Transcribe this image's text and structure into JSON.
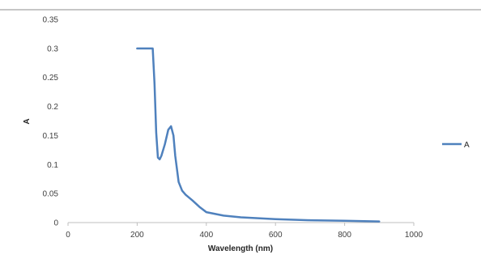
{
  "chart_data": {
    "type": "line",
    "title": "",
    "xlabel": "Wavelength (nm)",
    "ylabel": "A",
    "xlim": [
      0,
      1000
    ],
    "ylim": [
      0,
      0.35
    ],
    "x_ticks": [
      0,
      200,
      400,
      600,
      800,
      1000
    ],
    "y_ticks": [
      0,
      0.05,
      0.1,
      0.15,
      0.2,
      0.25,
      0.3,
      0.35
    ],
    "x_tick_labels": [
      "0",
      "200",
      "400",
      "600",
      "800",
      "1000"
    ],
    "y_tick_labels": [
      "0",
      "0.05",
      "0.1",
      "0.15",
      "0.2",
      "0.25",
      "0.3",
      "0.35"
    ],
    "grid": false,
    "legend_position": "right",
    "series": [
      {
        "name": "A",
        "color": "#4f81bd",
        "x": [
          200,
          240,
          245,
          250,
          255,
          260,
          265,
          270,
          280,
          290,
          298,
          305,
          310,
          320,
          330,
          340,
          360,
          380,
          400,
          450,
          500,
          600,
          700,
          800,
          900
        ],
        "y": [
          0.3,
          0.3,
          0.3,
          0.24,
          0.155,
          0.112,
          0.109,
          0.115,
          0.135,
          0.16,
          0.166,
          0.15,
          0.115,
          0.07,
          0.055,
          0.048,
          0.038,
          0.027,
          0.018,
          0.012,
          0.009,
          0.006,
          0.004,
          0.003,
          0.002
        ]
      }
    ]
  }
}
